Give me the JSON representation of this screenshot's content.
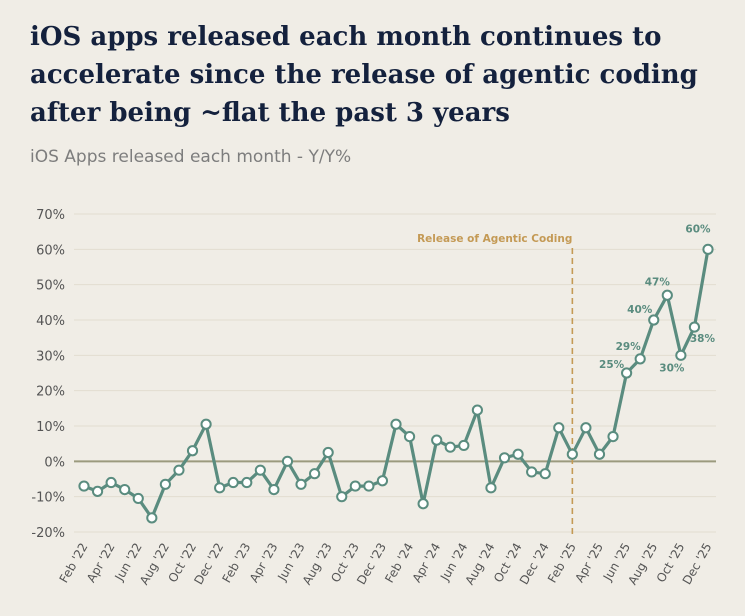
{
  "title_lines": [
    "iOS apps released each month continues to",
    "accelerate since the release of agentic coding",
    "after being ~flat the past 3 years"
  ],
  "colors": {
    "background": "#f0ede6",
    "title": "#14213d",
    "series": "#5a8c7f",
    "grid": "#e2ddd0",
    "zero_line": "#9b9a7e",
    "annotation": "#c49a55",
    "label": "#5a8c7f"
  },
  "chart_data": {
    "type": "line",
    "subtitle": "iOS Apps released each month - Y/Y%",
    "y_unit": "%",
    "ylim": [
      -20,
      70
    ],
    "y_ticks": [
      -20,
      -10,
      0,
      10,
      20,
      30,
      40,
      50,
      60,
      70
    ],
    "y_tick_labels": [
      "-20%",
      "-10%",
      "0%",
      "10%",
      "20%",
      "30%",
      "40%",
      "50%",
      "60%",
      "70%"
    ],
    "grid": true,
    "x": [
      "Feb '22",
      "Mar '22",
      "Apr '22",
      "May '22",
      "Jun '22",
      "Jul '22",
      "Aug '22",
      "Sep '22",
      "Oct '22",
      "Nov '22",
      "Dec '22",
      "Jan '23",
      "Feb '23",
      "Mar '23",
      "Apr '23",
      "May '23",
      "Jun '23",
      "Jul '23",
      "Aug '23",
      "Sep '23",
      "Oct '23",
      "Nov '23",
      "Dec '23",
      "Jan '24",
      "Feb '24",
      "Mar '24",
      "Apr '24",
      "May '24",
      "Jun '24",
      "Jul '24",
      "Aug '24",
      "Sep '24",
      "Oct '24",
      "Nov '24",
      "Dec '24",
      "Jan '25",
      "Feb '25",
      "Mar '25",
      "Apr '25",
      "May '25",
      "Jun '25",
      "Jul '25",
      "Aug '25",
      "Sep '25",
      "Oct '25",
      "Nov '25",
      "Dec '25"
    ],
    "x_tick_labels": [
      "Feb '22",
      "Apr '22",
      "Jun '22",
      "Aug '22",
      "Oct '22",
      "Dec '22",
      "Feb '23",
      "Apr '23",
      "Jun '23",
      "Aug '23",
      "Oct '23",
      "Dec '23",
      "Feb '24",
      "Apr '24",
      "Jun '24",
      "Aug '24",
      "Oct '24",
      "Dec '24",
      "Feb '25",
      "Apr '25",
      "Jun '25",
      "Aug '25",
      "Oct '25",
      "Dec '25"
    ],
    "series": [
      {
        "values": [
          -7,
          -8.5,
          -6,
          -8,
          -10.5,
          -16,
          -6.5,
          -2.5,
          3,
          10.5,
          -7.5,
          -6,
          -6,
          -2.5,
          -8,
          0,
          -6.5,
          -3.5,
          2.5,
          -10,
          -7,
          -7,
          -5.5,
          10.5,
          7,
          -12,
          6,
          4,
          4.5,
          14.5,
          -7.5,
          1,
          2,
          -3,
          -3.5,
          9.5,
          2,
          9.5,
          2,
          7,
          25,
          29,
          40,
          47,
          30,
          38,
          60
        ]
      }
    ],
    "data_labels": [
      {
        "x": "Jun '25",
        "text": "25%"
      },
      {
        "x": "Jul '25",
        "text": "29%"
      },
      {
        "x": "Aug '25",
        "text": "40%"
      },
      {
        "x": "Sep '25",
        "text": "47%"
      },
      {
        "x": "Oct '25",
        "text": "30%"
      },
      {
        "x": "Nov '25",
        "text": "38%"
      },
      {
        "x": "Dec '25",
        "text": "60%"
      }
    ],
    "annotations": [
      {
        "type": "vertical-line",
        "x": "Feb '25",
        "label": "Release of Agentic Coding"
      }
    ]
  }
}
